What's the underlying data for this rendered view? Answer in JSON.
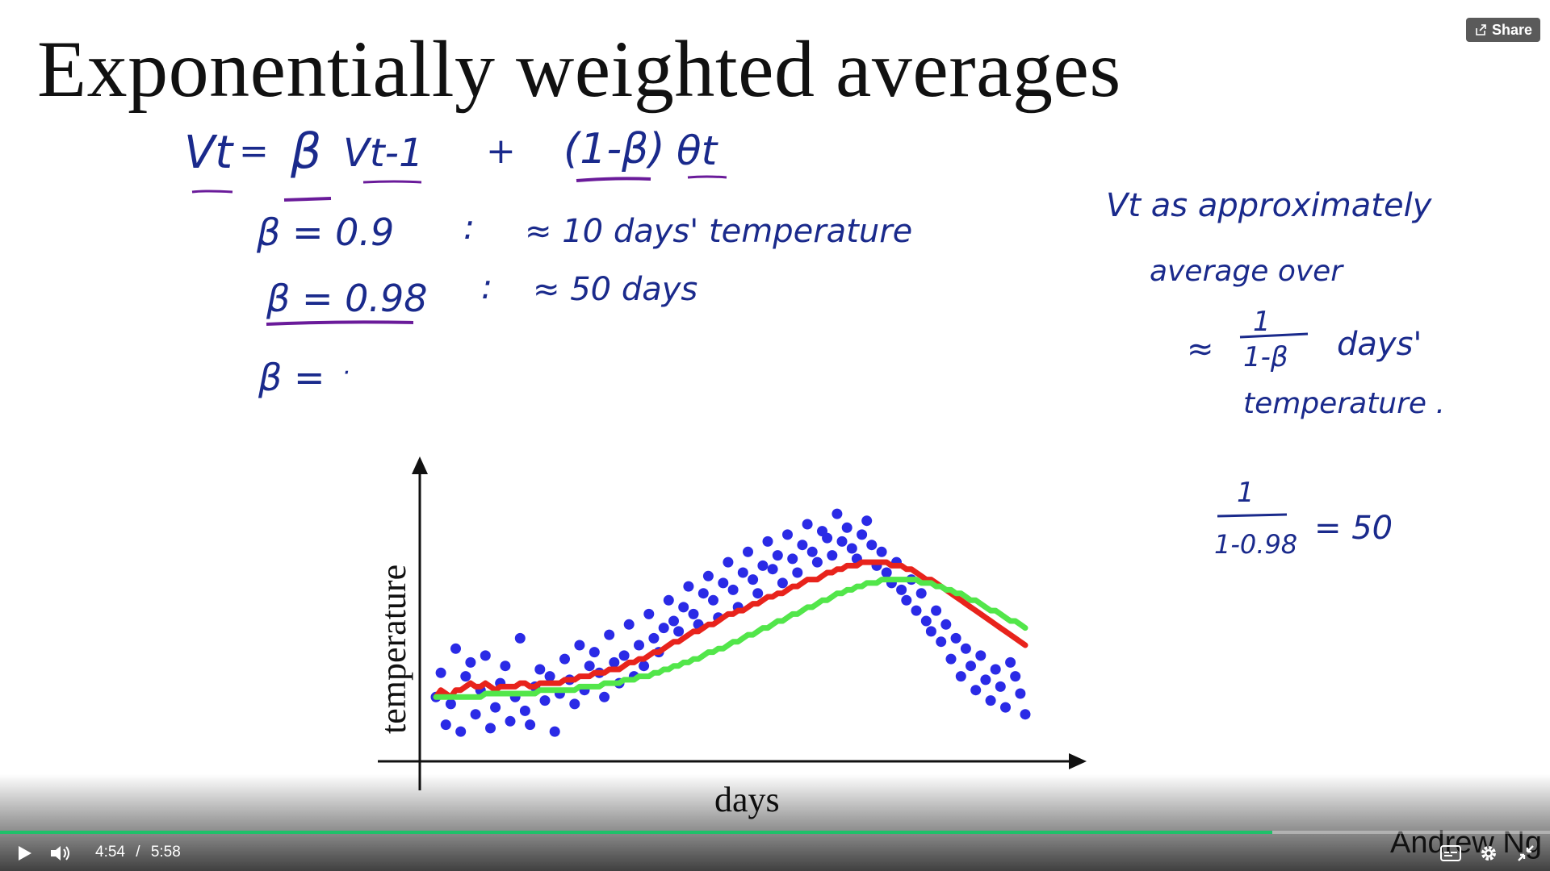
{
  "slide": {
    "title": "Exponentially weighted averages"
  },
  "share": {
    "label": "Share",
    "icon": "share-icon"
  },
  "notes": {
    "v_lhs": "Vt",
    "v_eq": "=",
    "beta": "β",
    "v_prev": "Vt-1",
    "plus": "+",
    "one_minus_beta": "(1-β)",
    "theta": "θt",
    "beta1": "β = 0.9",
    "colon1": ":",
    "approx1": "≈ 10 days' temperature",
    "beta2": "β = 0.98",
    "colon2": ":",
    "approx2": "≈ 50 days",
    "beta3": "β =",
    "beta3_dot": "·",
    "side1": "Vt  as  approximately",
    "side2": "average  over",
    "side3_approx": "≈",
    "side3_num": "1",
    "side3_den": "1-β",
    "side3_text": "days'",
    "side4": "temperature .",
    "frac_num": "1",
    "frac_den": "1-0.98",
    "frac_eq": "= 50"
  },
  "colors": {
    "ink_blue": "#1a2a8c",
    "ink_purple": "#6a1b9a",
    "dots": "#2a2ae6",
    "red_line": "#e8231c",
    "green_line": "#52e64a",
    "progress": "#1fc06a"
  },
  "chart_data": {
    "type": "scatter",
    "xlabel": "days",
    "ylabel": "temperature",
    "grid": false,
    "x": [
      0,
      3,
      6,
      9,
      12,
      15,
      18,
      21,
      24,
      27,
      30,
      33,
      36,
      39,
      42,
      45,
      48,
      51,
      54,
      57,
      60,
      63,
      66,
      69,
      72,
      75,
      78,
      81,
      84,
      87,
      90,
      93,
      96,
      99,
      102,
      105,
      108,
      111,
      114,
      117,
      120,
      123,
      126,
      129,
      132,
      135,
      138,
      141,
      144,
      147,
      150,
      153,
      156,
      159,
      162,
      165,
      168,
      171,
      174,
      177,
      180,
      183,
      186,
      189,
      192,
      195,
      198,
      201,
      204,
      207,
      210,
      213,
      216,
      219,
      222,
      225,
      228,
      231,
      234,
      237,
      240,
      243,
      246,
      249,
      252,
      255,
      258,
      261,
      264,
      267,
      270,
      273,
      276,
      279,
      282,
      285,
      288,
      291,
      294,
      297,
      300,
      303,
      306,
      309,
      312,
      315,
      318,
      321,
      324,
      327,
      330,
      333,
      336,
      339,
      342,
      345,
      348,
      351,
      354,
      357
    ],
    "values": [
      38,
      45,
      30,
      36,
      52,
      28,
      44,
      48,
      33,
      40,
      50,
      29,
      35,
      42,
      47,
      31,
      38,
      55,
      34,
      30,
      41,
      46,
      37,
      44,
      28,
      39,
      49,
      43,
      36,
      53,
      40,
      47,
      51,
      45,
      38,
      56,
      48,
      42,
      50,
      59,
      44,
      53,
      47,
      62,
      55,
      51,
      58,
      66,
      60,
      57,
      64,
      70,
      62,
      59,
      68,
      73,
      66,
      61,
      71,
      77,
      69,
      64,
      74,
      80,
      72,
      68,
      76,
      83,
      75,
      79,
      71,
      85,
      78,
      74,
      82,
      88,
      80,
      77,
      86,
      84,
      79,
      91,
      83,
      87,
      81,
      78,
      85,
      89,
      82,
      76,
      80,
      74,
      71,
      77,
      69,
      66,
      72,
      63,
      68,
      60,
      57,
      63,
      54,
      59,
      49,
      55,
      44,
      52,
      47,
      40,
      50,
      43,
      37,
      46,
      41,
      35,
      48,
      44,
      39,
      33
    ],
    "series": [
      {
        "name": "",
        "color": "#e8231c",
        "values": [
          38,
          40,
          39,
          38,
          40,
          40,
          41,
          42,
          41,
          41,
          42,
          41,
          40,
          41,
          41,
          41,
          41,
          42,
          42,
          41,
          41,
          42,
          42,
          42,
          42,
          42,
          43,
          43,
          43,
          44,
          44,
          44,
          45,
          45,
          45,
          46,
          46,
          46,
          47,
          48,
          48,
          49,
          49,
          50,
          51,
          51,
          52,
          53,
          54,
          54,
          55,
          56,
          57,
          57,
          58,
          59,
          59,
          60,
          61,
          62,
          62,
          63,
          63,
          64,
          65,
          65,
          66,
          67,
          67,
          68,
          68,
          69,
          70,
          70,
          71,
          72,
          72,
          72,
          73,
          74,
          74,
          75,
          75,
          76,
          76,
          76,
          77,
          77,
          77,
          77,
          77,
          77,
          76,
          76,
          76,
          75,
          75,
          74,
          73,
          72,
          72,
          71,
          70,
          69,
          68,
          67,
          66,
          65,
          64,
          63,
          62,
          61,
          60,
          59,
          58,
          57,
          56,
          55,
          54,
          53
        ]
      },
      {
        "name": "",
        "color": "#52e64a",
        "values": [
          38,
          38,
          38,
          38,
          38,
          38,
          38,
          38,
          38,
          38,
          39,
          39,
          39,
          39,
          39,
          39,
          39,
          39,
          39,
          39,
          39,
          40,
          40,
          40,
          40,
          40,
          40,
          40,
          40,
          41,
          41,
          41,
          41,
          41,
          42,
          42,
          42,
          42,
          43,
          43,
          43,
          44,
          44,
          44,
          45,
          45,
          46,
          46,
          47,
          47,
          48,
          48,
          49,
          49,
          50,
          51,
          51,
          52,
          52,
          53,
          54,
          54,
          55,
          56,
          56,
          57,
          58,
          58,
          59,
          60,
          60,
          61,
          62,
          62,
          63,
          64,
          64,
          65,
          66,
          66,
          67,
          68,
          68,
          69,
          69,
          70,
          70,
          71,
          71,
          71,
          72,
          72,
          72,
          72,
          72,
          72,
          72,
          72,
          71,
          71,
          71,
          70,
          70,
          69,
          69,
          68,
          68,
          67,
          66,
          66,
          65,
          64,
          63,
          63,
          62,
          61,
          60,
          60,
          59,
          58
        ]
      }
    ]
  },
  "player": {
    "current_time": "4:54",
    "separator": "/",
    "duration": "5:58",
    "progress": 0.821,
    "credit": "Andrew Ng"
  }
}
